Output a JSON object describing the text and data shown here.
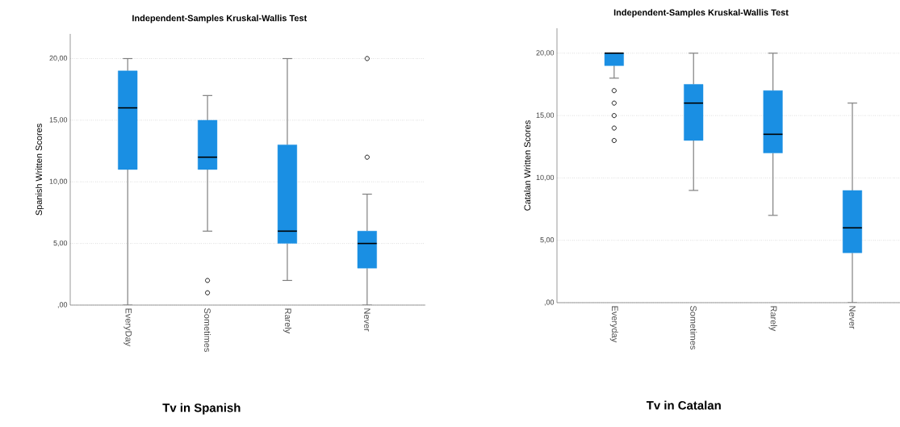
{
  "chart_data": [
    {
      "type": "box",
      "title": "Independent-Samples Kruskal-Wallis Test",
      "xlabel": "Tv in Spanish",
      "ylabel": "Spanish Written Scores",
      "color": "#1a8fe3",
      "categories": [
        "EveryDay",
        "Sometimes",
        "Rarely",
        "Never"
      ],
      "boxes": [
        {
          "low": 0,
          "q1": 11,
          "median": 16,
          "q3": 19,
          "high": 20
        },
        {
          "low": 6,
          "q1": 11,
          "median": 12,
          "q3": 15,
          "high": 17,
          "outliers": [
            1,
            2
          ]
        },
        {
          "low": 2,
          "q1": 5,
          "median": 6,
          "q3": 13,
          "high": 20
        },
        {
          "low": 0,
          "q1": 3,
          "median": 5,
          "q3": 6,
          "high": 9,
          "outliers": [
            12,
            20
          ]
        }
      ],
      "ylim": [
        0,
        22
      ],
      "yticks": [
        {
          "value": 0,
          "label": ",00"
        },
        {
          "value": 5,
          "label": "5,00"
        },
        {
          "value": 10,
          "label": "10,00"
        },
        {
          "value": 15,
          "label": "15,00"
        },
        {
          "value": 20,
          "label": "20,00"
        }
      ],
      "grid": "y",
      "marker": "circle"
    },
    {
      "type": "box",
      "title": "Independent-Samples Kruskal-Wallis Test",
      "xlabel": "Tv in Catalan",
      "ylabel": "Catalan Written Scores",
      "color": "#1a8fe3",
      "categories": [
        "Everyday",
        "Sometimes",
        "Rarely",
        "Never"
      ],
      "boxes": [
        {
          "low": 18,
          "q1": 19,
          "median": 20,
          "q3": 20,
          "high": 20,
          "outliers": [
            17,
            16,
            15,
            14,
            13
          ]
        },
        {
          "low": 9,
          "q1": 13,
          "median": 16,
          "q3": 17.5,
          "high": 20
        },
        {
          "low": 7,
          "q1": 12,
          "median": 13.5,
          "q3": 17,
          "high": 20
        },
        {
          "low": 0,
          "q1": 4,
          "median": 6,
          "q3": 9,
          "high": 16
        }
      ],
      "ylim": [
        0,
        22
      ],
      "yticks": [
        {
          "value": 0,
          "label": ",00"
        },
        {
          "value": 5,
          "label": "5,00"
        },
        {
          "value": 10,
          "label": "10,00"
        },
        {
          "value": 15,
          "label": "15,00"
        },
        {
          "value": 20,
          "label": "20,00"
        }
      ],
      "grid": "y",
      "marker": "circle"
    }
  ]
}
